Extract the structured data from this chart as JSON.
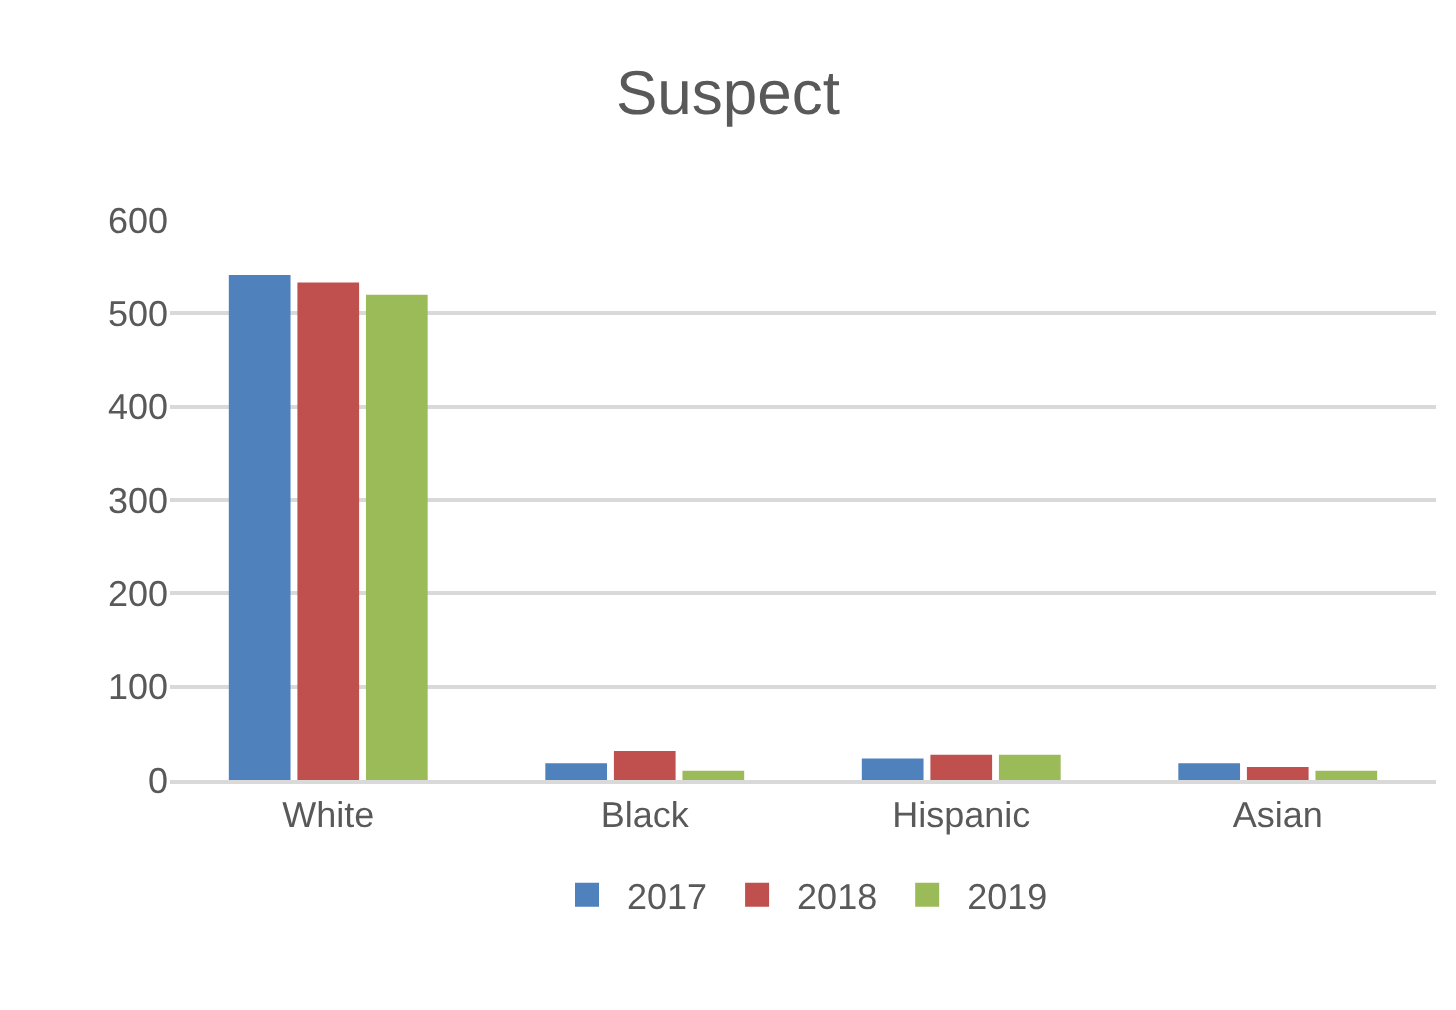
{
  "chart_data": {
    "type": "bar",
    "title": "Suspect",
    "categories": [
      "White",
      "Black",
      "Hispanic",
      "Asian"
    ],
    "series": [
      {
        "name": "2017",
        "color": "#4f81bd",
        "values": [
          541,
          18,
          23,
          18
        ]
      },
      {
        "name": "2018",
        "color": "#c0504d",
        "values": [
          533,
          31,
          27,
          14
        ]
      },
      {
        "name": "2019",
        "color": "#9bbb59",
        "values": [
          520,
          10,
          27,
          10
        ]
      }
    ],
    "ylim": [
      0,
      600
    ],
    "yticks": [
      0,
      100,
      200,
      300,
      400,
      500,
      600
    ],
    "grid": "y",
    "legend": "bottom"
  }
}
